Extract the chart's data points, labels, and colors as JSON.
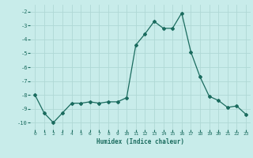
{
  "x": [
    0,
    1,
    2,
    3,
    4,
    5,
    6,
    7,
    8,
    9,
    10,
    11,
    12,
    13,
    14,
    15,
    16,
    17,
    18,
    19,
    20,
    21,
    22,
    23
  ],
  "y": [
    -8,
    -9.3,
    -10,
    -9.3,
    -8.6,
    -8.6,
    -8.5,
    -8.6,
    -8.5,
    -8.5,
    -8.2,
    -4.4,
    -3.6,
    -2.7,
    -3.2,
    -3.2,
    -2.1,
    -4.9,
    -6.7,
    -8.1,
    -8.4,
    -8.9,
    -8.8,
    -9.4
  ],
  "line_color": "#1a6b5e",
  "bg_color": "#c8ecea",
  "grid_color": "#afd8d5",
  "xlabel": "Humidex (Indice chaleur)",
  "ylim": [
    -10.5,
    -1.5
  ],
  "xlim": [
    -0.5,
    23.5
  ],
  "yticks": [
    -10,
    -9,
    -8,
    -7,
    -6,
    -5,
    -4,
    -3,
    -2
  ],
  "xticks": [
    0,
    1,
    2,
    3,
    4,
    5,
    6,
    7,
    8,
    9,
    10,
    11,
    12,
    13,
    14,
    15,
    16,
    17,
    18,
    19,
    20,
    21,
    22,
    23
  ]
}
